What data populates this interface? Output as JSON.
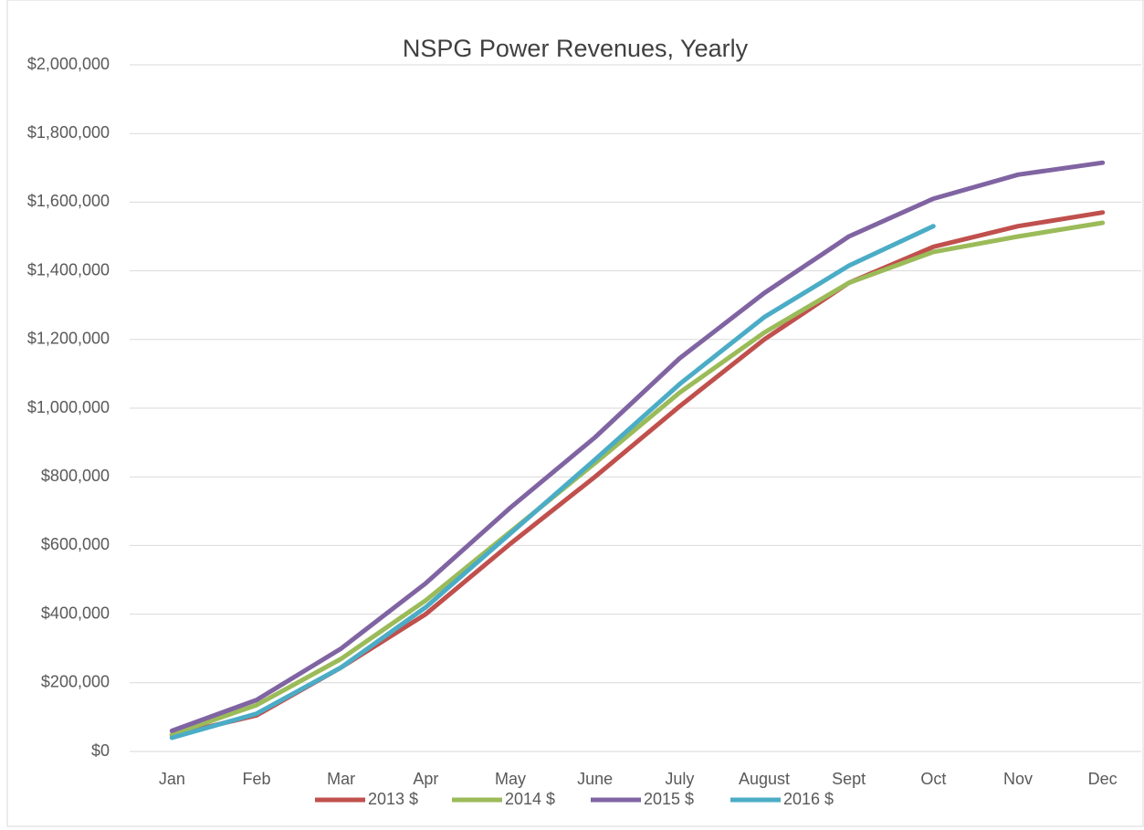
{
  "chart_data": {
    "type": "line",
    "title": "NSPG Power Revenues, Yearly",
    "categories": [
      "Jan",
      "Feb",
      "Mar",
      "Apr",
      "May",
      "June",
      "July",
      "August",
      "Sept",
      "Oct",
      "Nov",
      "Dec"
    ],
    "series": [
      {
        "name": "2013 $",
        "color": "#c0504d",
        "values": [
          48000,
          105000,
          245000,
          400000,
          605000,
          800000,
          1005000,
          1200000,
          1365000,
          1470000,
          1530000,
          1570000
        ]
      },
      {
        "name": "2014 $",
        "color": "#9bbb59",
        "values": [
          50000,
          135000,
          270000,
          440000,
          640000,
          840000,
          1045000,
          1220000,
          1365000,
          1455000,
          1500000,
          1540000
        ]
      },
      {
        "name": "2015 $",
        "color": "#8064a2",
        "values": [
          60000,
          150000,
          300000,
          490000,
          710000,
          915000,
          1145000,
          1335000,
          1500000,
          1610000,
          1680000,
          1715000
        ]
      },
      {
        "name": "2016 $",
        "color": "#4bacc6",
        "values": [
          40000,
          110000,
          245000,
          420000,
          635000,
          850000,
          1070000,
          1265000,
          1415000,
          1530000,
          null,
          null
        ]
      }
    ],
    "ylim": [
      0,
      2000000
    ],
    "yticks": [
      {
        "value": 0,
        "label": "$0"
      },
      {
        "value": 200000,
        "label": "$200,000"
      },
      {
        "value": 400000,
        "label": "$400,000"
      },
      {
        "value": 600000,
        "label": "$600,000"
      },
      {
        "value": 800000,
        "label": "$800,000"
      },
      {
        "value": 1000000,
        "label": "$1,000,000"
      },
      {
        "value": 1200000,
        "label": "$1,200,000"
      },
      {
        "value": 1400000,
        "label": "$1,400,000"
      },
      {
        "value": 1600000,
        "label": "$1,600,000"
      },
      {
        "value": 1800000,
        "label": "$1,800,000"
      },
      {
        "value": 2000000,
        "label": "$2,000,000"
      }
    ],
    "grid": true,
    "legend": "bottom"
  }
}
